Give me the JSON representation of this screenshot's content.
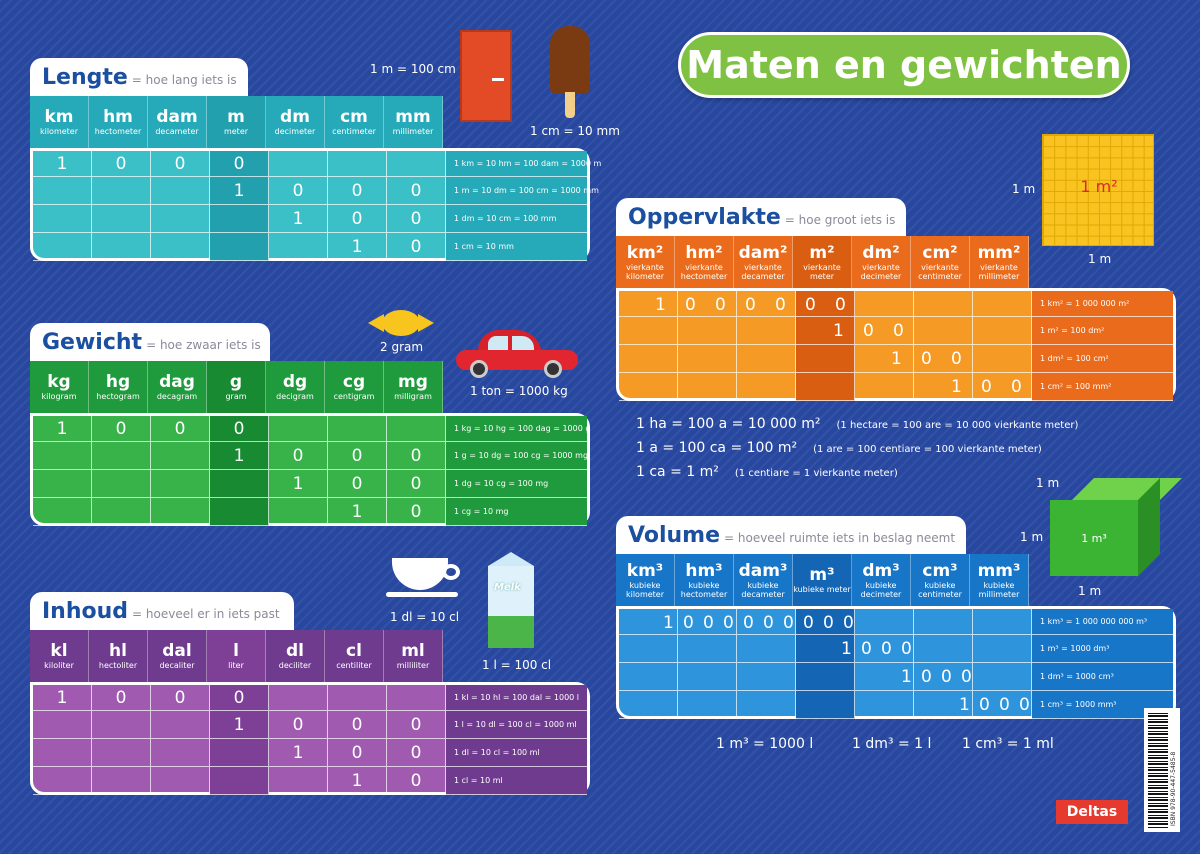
{
  "title": "Maten en gewichten",
  "lengte": {
    "title": "Lengte",
    "subtitle": "= hoe lang iets is",
    "headers": [
      [
        "km",
        "kilometer"
      ],
      [
        "hm",
        "hectometer"
      ],
      [
        "dam",
        "decameter"
      ],
      [
        "m",
        "meter"
      ],
      [
        "dm",
        "decimeter"
      ],
      [
        "cm",
        "centimeter"
      ],
      [
        "mm",
        "millimeter"
      ]
    ],
    "relations": [
      "1 km = 10 hm = 100 dam = 1000 m",
      "1 m = 10 dm = 100 cm = 1000 mm",
      "1 dm = 10 cm = 100 mm",
      "1 cm = 10 mm"
    ],
    "note_door": "1 m = 100 cm",
    "note_icecream": "1 cm = 10 mm"
  },
  "gewicht": {
    "title": "Gewicht",
    "subtitle": "= hoe zwaar iets is",
    "headers": [
      [
        "kg",
        "kilogram"
      ],
      [
        "hg",
        "hectogram"
      ],
      [
        "dag",
        "decagram"
      ],
      [
        "g",
        "gram"
      ],
      [
        "dg",
        "decigram"
      ],
      [
        "cg",
        "centigram"
      ],
      [
        "mg",
        "milligram"
      ]
    ],
    "relations": [
      "1 kg = 10 hg = 100 dag = 1000 g",
      "1 g = 10 dg = 100 cg = 1000 mg",
      "1 dg = 10 cg = 100 mg",
      "1 cg = 10 mg"
    ],
    "note_candy": "2 gram",
    "note_car": "1 ton = 1000 kg"
  },
  "inhoud": {
    "title": "Inhoud",
    "subtitle": "= hoeveel er in iets past",
    "headers": [
      [
        "kl",
        "kiloliter"
      ],
      [
        "hl",
        "hectoliter"
      ],
      [
        "dal",
        "decaliter"
      ],
      [
        "l",
        "liter"
      ],
      [
        "dl",
        "deciliter"
      ],
      [
        "cl",
        "centiliter"
      ],
      [
        "ml",
        "milliliter"
      ]
    ],
    "relations": [
      "1 kl = 10 hl = 100 dal = 1000 l",
      "1 l = 10 dl = 100 cl = 1000 ml",
      "1 dl = 10 cl = 100 ml",
      "1 cl = 10 ml"
    ],
    "note_cup": "1 dl = 10 cl",
    "note_milk": "1 l = 100 cl",
    "milk_brand": "Melk"
  },
  "oppervlakte": {
    "title": "Oppervlakte",
    "subtitle": "= hoe groot iets is",
    "headers": [
      [
        "km²",
        "vierkante kilometer"
      ],
      [
        "hm²",
        "vierkante hectometer"
      ],
      [
        "dam²",
        "vierkante decameter"
      ],
      [
        "m²",
        "vierkante meter"
      ],
      [
        "dm²",
        "vierkante decimeter"
      ],
      [
        "cm²",
        "vierkante centimeter"
      ],
      [
        "mm²",
        "vierkante millimeter"
      ]
    ],
    "relations": [
      "1 km² = 1 000 000 m²",
      "1 m² = 100 dm²",
      "1 dm² = 100 cm²",
      "1 cm² = 100 mm²"
    ],
    "square_label": "1 m²",
    "side": "1 m",
    "equations": [
      [
        "1 ha = 100 a = 10 000 m²",
        "(1 hectare = 100 are = 10 000 vierkante meter)"
      ],
      [
        "1 a = 100 ca = 100 m²",
        "(1 are = 100 centiare = 100 vierkante meter)"
      ],
      [
        "1 ca = 1 m²",
        "(1 centiare = 1 vierkante meter)"
      ]
    ]
  },
  "volume": {
    "title": "Volume",
    "subtitle": "= hoeveel ruimte iets in beslag neemt",
    "headers": [
      [
        "km³",
        "kubieke kilometer"
      ],
      [
        "hm³",
        "kubieke hectometer"
      ],
      [
        "dam³",
        "kubieke decameter"
      ],
      [
        "m³",
        "kubieke meter"
      ],
      [
        "dm³",
        "kubieke decimeter"
      ],
      [
        "cm³",
        "kubieke centimeter"
      ],
      [
        "mm³",
        "kubieke millimeter"
      ]
    ],
    "relations": [
      "1 km³ = 1 000 000 000 m³",
      "1 m³ = 1000 dm³",
      "1 dm³ = 1000 cm³",
      "1 cm³ = 1000 mm³"
    ],
    "cube_label": "1 m³",
    "side": "1 m",
    "bottom": [
      "1 m³ = 1000 l",
      "1 dm³ = 1 l",
      "1 cm³ = 1 ml"
    ]
  },
  "publisher": "Deltas",
  "isbn": "ISBN 978-90-447-5485-8",
  "colors": {
    "background": "#2848a0",
    "title_pill": "#7fc243",
    "lengte_head": "#26a9b8",
    "lengte_body": "#3cc0c7",
    "gewicht_head": "#1f9a3c",
    "gewicht_body": "#38b34a",
    "inhoud_head": "#6f3b8e",
    "inhoud_body": "#a05bb0",
    "oppervlakte_head": "#e96b1b",
    "oppervlakte_body": "#f59a24",
    "volume_head": "#1876c8",
    "volume_body": "#2e95dd"
  }
}
